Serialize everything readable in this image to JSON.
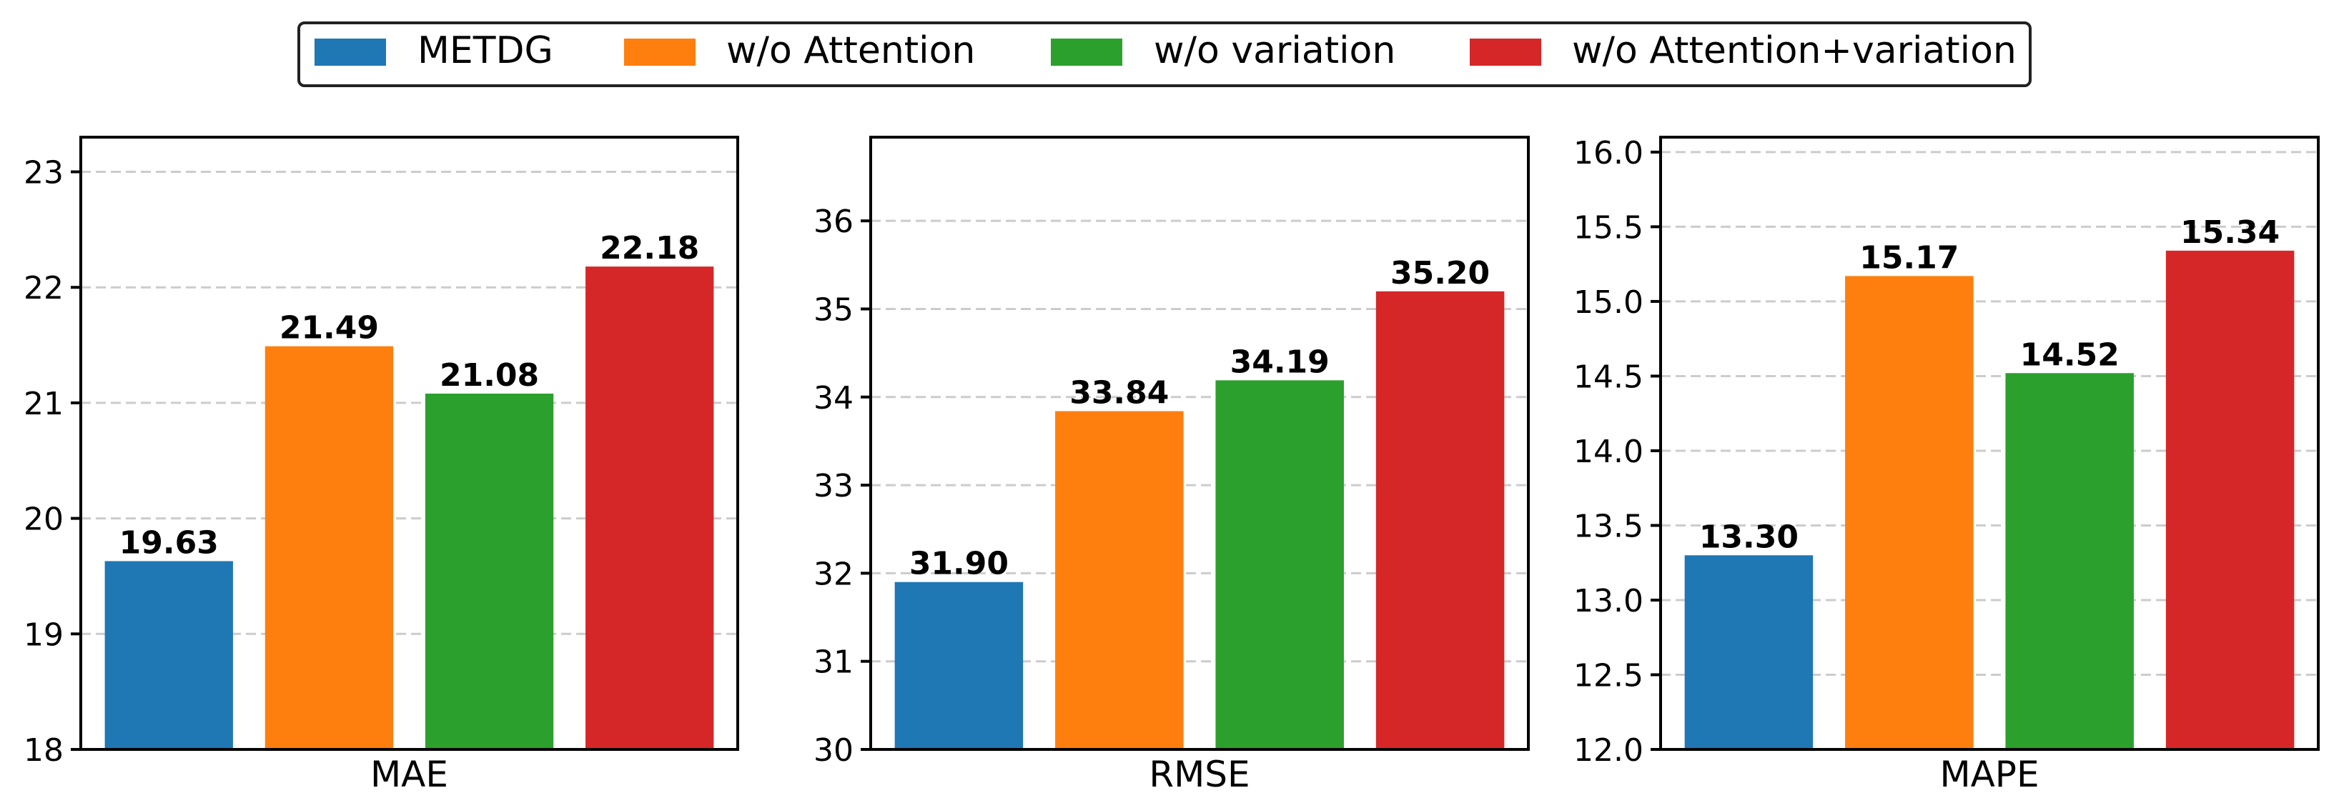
{
  "legend": {
    "placement": "top-center",
    "items": [
      {
        "label": "METDG",
        "color": "#1f77b4"
      },
      {
        "label": "w/o Attention",
        "color": "#ff7f0e"
      },
      {
        "label": "w/o variation",
        "color": "#2ca02c"
      },
      {
        "label": "w/o Attention+variation",
        "color": "#d62728"
      }
    ]
  },
  "chart_data": [
    {
      "type": "bar",
      "xlabel": "MAE",
      "categories": [
        "METDG",
        "w/o Attention",
        "w/o variation",
        "w/o Attention+variation"
      ],
      "values": [
        19.63,
        21.49,
        21.08,
        22.18
      ],
      "value_labels": [
        "19.63",
        "21.49",
        "21.08",
        "22.18"
      ],
      "ylim": [
        18,
        23.3
      ],
      "yticks": [
        18,
        19,
        20,
        21,
        22,
        23
      ],
      "ytick_labels": [
        "18",
        "19",
        "20",
        "21",
        "22",
        "23"
      ],
      "grid": "y-dashed"
    },
    {
      "type": "bar",
      "xlabel": "RMSE",
      "categories": [
        "METDG",
        "w/o Attention",
        "w/o variation",
        "w/o Attention+variation"
      ],
      "values": [
        31.9,
        33.84,
        34.19,
        35.2
      ],
      "value_labels": [
        "31.90",
        "33.84",
        "34.19",
        "35.20"
      ],
      "ylim": [
        30,
        36.95
      ],
      "yticks": [
        30,
        31,
        32,
        33,
        34,
        35,
        36
      ],
      "ytick_labels": [
        "30",
        "31",
        "32",
        "33",
        "34",
        "35",
        "36"
      ],
      "grid": "y-dashed"
    },
    {
      "type": "bar",
      "xlabel": "MAPE",
      "categories": [
        "METDG",
        "w/o Attention",
        "w/o variation",
        "w/o Attention+variation"
      ],
      "values": [
        13.3,
        15.17,
        14.52,
        15.34
      ],
      "value_labels": [
        "13.30",
        "15.17",
        "14.52",
        "15.34"
      ],
      "ylim": [
        12,
        16.1
      ],
      "yticks": [
        12.0,
        12.5,
        13.0,
        13.5,
        14.0,
        14.5,
        15.0,
        15.5,
        16.0
      ],
      "ytick_labels": [
        "12.0",
        "12.5",
        "13.0",
        "13.5",
        "14.0",
        "14.5",
        "15.0",
        "15.5",
        "16.0"
      ],
      "grid": "y-dashed"
    }
  ]
}
